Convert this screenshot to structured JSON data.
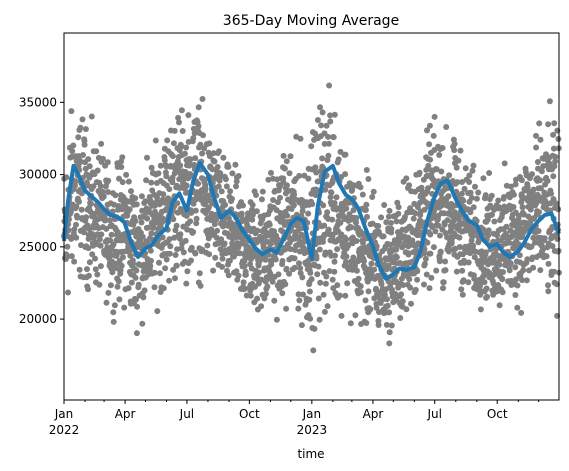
{
  "chart_data": {
    "type": "line",
    "title": "365-Day Moving Average",
    "xlabel": "time",
    "ylabel": "",
    "xlim": [
      "2022-01-01",
      "2023-12-31"
    ],
    "ylim": [
      14400,
      39800
    ],
    "grid": false,
    "legend": "none",
    "x_ticks": [
      {
        "date": "2022-01-01",
        "label": "Jan",
        "sublabel": "2022"
      },
      {
        "date": "2022-04-01",
        "label": "Apr",
        "sublabel": ""
      },
      {
        "date": "2022-07-01",
        "label": "Jul",
        "sublabel": ""
      },
      {
        "date": "2022-10-01",
        "label": "Oct",
        "sublabel": ""
      },
      {
        "date": "2023-01-01",
        "label": "Jan",
        "sublabel": "2023"
      },
      {
        "date": "2023-04-01",
        "label": "Apr",
        "sublabel": ""
      },
      {
        "date": "2023-07-01",
        "label": "Jul",
        "sublabel": ""
      },
      {
        "date": "2023-10-01",
        "label": "Oct",
        "sublabel": ""
      }
    ],
    "y_ticks": [
      20000,
      25000,
      30000,
      35000
    ],
    "scatter_color": "#808080",
    "line_color": "#1f77b4",
    "series": [
      {
        "kind": "scatter",
        "envelope": {
          "x": [
            "2022-01-01",
            "2022-01-15",
            "2022-02-01",
            "2022-02-15",
            "2022-03-01",
            "2022-03-15",
            "2022-04-01",
            "2022-04-15",
            "2022-05-01",
            "2022-05-15",
            "2022-06-01",
            "2022-06-15",
            "2022-07-01",
            "2022-07-15",
            "2022-08-01",
            "2022-08-15",
            "2022-09-01",
            "2022-09-15",
            "2022-10-01",
            "2022-10-15",
            "2022-11-01",
            "2022-11-15",
            "2022-12-01",
            "2022-12-15",
            "2023-01-01",
            "2023-01-15",
            "2023-02-01",
            "2023-02-15",
            "2023-03-01",
            "2023-03-15",
            "2023-04-01",
            "2023-04-15",
            "2023-05-01",
            "2023-05-15",
            "2023-06-01",
            "2023-06-15",
            "2023-07-01",
            "2023-07-15",
            "2023-08-01",
            "2023-08-15",
            "2023-09-01",
            "2023-09-15",
            "2023-10-01",
            "2023-10-15",
            "2023-11-01",
            "2023-11-15",
            "2023-12-01",
            "2023-12-15",
            "2023-12-31"
          ],
          "low": [
            17500,
            20500,
            20500,
            20000,
            20000,
            19500,
            19000,
            18000,
            18500,
            19500,
            20000,
            20500,
            21000,
            21000,
            21000,
            20500,
            20000,
            19500,
            19000,
            18500,
            18500,
            19000,
            19500,
            18000,
            16200,
            17500,
            18000,
            19000,
            18500,
            17500,
            16800,
            17000,
            17500,
            18000,
            19500,
            20000,
            20500,
            20500,
            20500,
            20000,
            19500,
            19500,
            19000,
            19000,
            19000,
            19500,
            19500,
            18500,
            17800
          ],
          "high": [
            33000,
            37500,
            35500,
            34500,
            33000,
            31500,
            34000,
            31000,
            32500,
            33500,
            35500,
            37000,
            36000,
            37700,
            35000,
            34000,
            32000,
            31500,
            30500,
            31000,
            32000,
            33000,
            33500,
            34000,
            35000,
            38700,
            37500,
            35500,
            33000,
            32000,
            31000,
            29500,
            30000,
            31000,
            32500,
            34000,
            35500,
            35000,
            34000,
            33000,
            31500,
            31000,
            31000,
            32000,
            33000,
            34000,
            35000,
            36500,
            35000
          ]
        }
      },
      {
        "kind": "line",
        "x": [
          "2022-01-01",
          "2022-01-07",
          "2022-01-15",
          "2022-01-22",
          "2022-02-01",
          "2022-02-10",
          "2022-02-20",
          "2022-03-01",
          "2022-03-10",
          "2022-03-20",
          "2022-03-31",
          "2022-04-10",
          "2022-04-20",
          "2022-05-01",
          "2022-05-10",
          "2022-05-20",
          "2022-06-01",
          "2022-06-10",
          "2022-06-20",
          "2022-07-01",
          "2022-07-10",
          "2022-07-20",
          "2022-08-01",
          "2022-08-10",
          "2022-08-20",
          "2022-09-01",
          "2022-09-10",
          "2022-09-20",
          "2022-10-01",
          "2022-10-10",
          "2022-10-20",
          "2022-11-01",
          "2022-11-10",
          "2022-11-20",
          "2022-12-01",
          "2022-12-10",
          "2022-12-20",
          "2023-01-01",
          "2023-01-10",
          "2023-01-20",
          "2023-02-01",
          "2023-02-10",
          "2023-02-20",
          "2023-03-01",
          "2023-03-10",
          "2023-03-20",
          "2023-04-01",
          "2023-04-10",
          "2023-04-20",
          "2023-05-01",
          "2023-05-10",
          "2023-05-20",
          "2023-06-01",
          "2023-06-10",
          "2023-06-20",
          "2023-07-01",
          "2023-07-10",
          "2023-07-20",
          "2023-08-01",
          "2023-08-10",
          "2023-08-20",
          "2023-09-01",
          "2023-09-10",
          "2023-09-20",
          "2023-10-01",
          "2023-10-10",
          "2023-10-20",
          "2023-11-01",
          "2023-11-10",
          "2023-11-20",
          "2023-12-01",
          "2023-12-10",
          "2023-12-20",
          "2023-12-31"
        ],
        "y": [
          25400,
          28200,
          30600,
          30000,
          28900,
          28500,
          28100,
          27600,
          27200,
          27100,
          26700,
          25300,
          24300,
          24900,
          25100,
          25800,
          26300,
          28100,
          28700,
          27500,
          29500,
          30800,
          30000,
          28400,
          27000,
          27500,
          27100,
          26200,
          25500,
          24900,
          24500,
          24800,
          24600,
          25500,
          26600,
          27000,
          26800,
          24200,
          27900,
          30200,
          30600,
          29400,
          28600,
          28300,
          27700,
          26400,
          25000,
          23700,
          22800,
          23100,
          23500,
          23400,
          23600,
          24700,
          26800,
          28500,
          29400,
          29600,
          28300,
          27500,
          26800,
          26500,
          25500,
          25000,
          25200,
          24600,
          24300,
          24700,
          25300,
          26200,
          26800,
          27200,
          27300,
          25900
        ]
      }
    ]
  }
}
